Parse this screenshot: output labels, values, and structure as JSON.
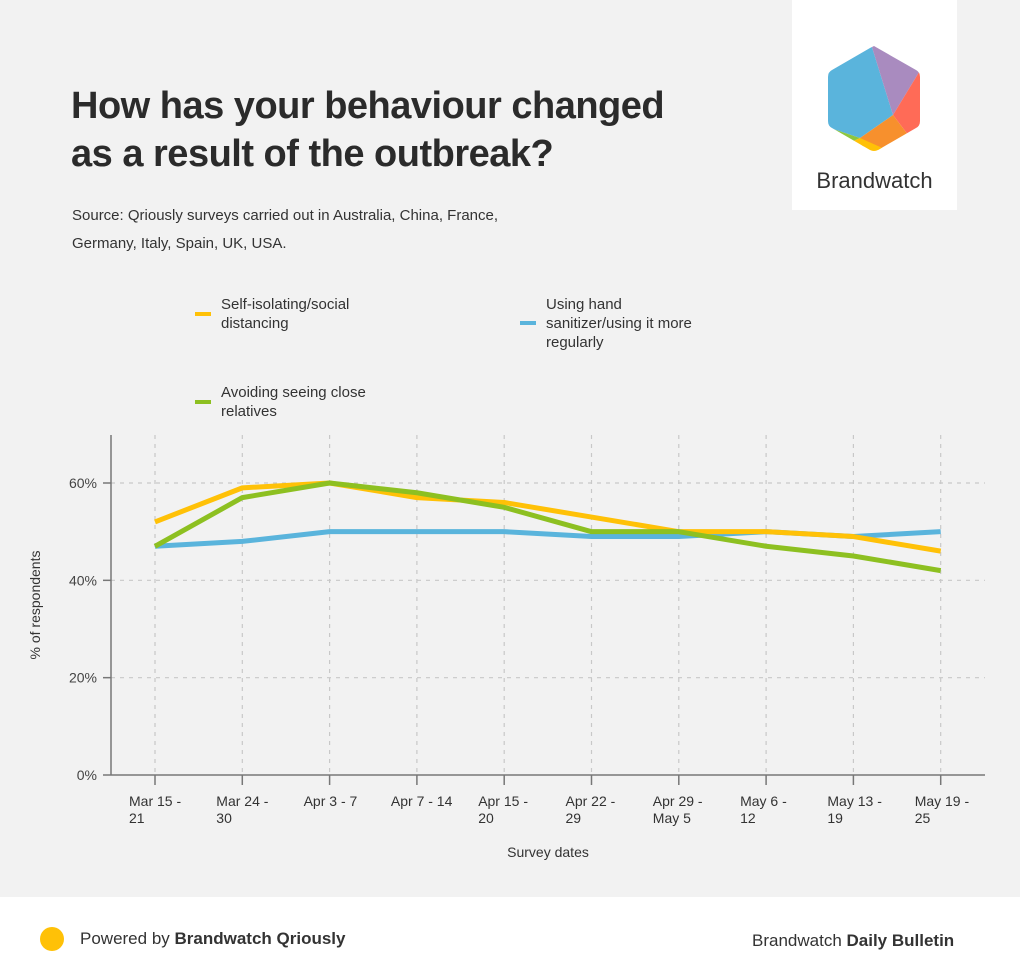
{
  "header": {
    "title_line1": "How has your behaviour changed",
    "title_line2": "as a result of the outbreak?",
    "source_line1": "Source: Qriously surveys carried out in Australia, China, France,",
    "source_line2": "Germany, Italy, Spain, UK, USA."
  },
  "logo": {
    "text": "Brandwatch",
    "colors": [
      "#5ab4dc",
      "#a98bbf",
      "#ff6b57",
      "#f7902d",
      "#ffc107",
      "#8dc63f"
    ]
  },
  "footer": {
    "powered_prefix": "Powered by ",
    "powered_brand": "Brandwatch Qriously",
    "right_prefix": "Brandwatch ",
    "right_bold": "Daily Bulletin",
    "dot_color": "#ffc107"
  },
  "chart_data": {
    "type": "line",
    "title": "How has your behaviour changed as a result of the outbreak?",
    "xlabel": "Survey dates",
    "ylabel": "% of respondents",
    "categories": [
      [
        "Mar 15 -",
        "21"
      ],
      [
        "Mar 24 -",
        "30"
      ],
      [
        "Apr 3 - 7"
      ],
      [
        "Apr 7 - 14"
      ],
      [
        "Apr 15 -",
        "20"
      ],
      [
        "Apr 22 -",
        "29"
      ],
      [
        "Apr 29 -",
        "May 5"
      ],
      [
        "May 6 -",
        "12"
      ],
      [
        "May 13 -",
        "19"
      ],
      [
        "May 19 -",
        "25"
      ]
    ],
    "ylim": [
      0,
      70
    ],
    "yticks": [
      0,
      20,
      40,
      60
    ],
    "ytick_labels": [
      "0%",
      "20%",
      "40%",
      "60%"
    ],
    "grid": true,
    "legend_position": "top-left",
    "series": [
      {
        "name": "Self-isolating/social distancing",
        "legend_lines": [
          "Self-isolating/social",
          "distancing"
        ],
        "color": "#ffc107",
        "values": [
          52,
          59,
          60,
          57,
          56,
          53,
          50,
          50,
          49,
          46
        ]
      },
      {
        "name": "Using hand sanitizer/using it more regularly",
        "legend_lines": [
          "Using hand",
          "sanitizer/using it more",
          "regularly"
        ],
        "color": "#5ab4dc",
        "values": [
          47,
          48,
          50,
          50,
          50,
          49,
          49,
          50,
          49,
          50
        ]
      },
      {
        "name": "Avoiding seeing close relatives",
        "legend_lines": [
          "Avoiding seeing close",
          "relatives"
        ],
        "color": "#8dc021",
        "values": [
          47,
          57,
          60,
          58,
          55,
          50,
          50,
          47,
          45,
          42
        ]
      }
    ]
  }
}
